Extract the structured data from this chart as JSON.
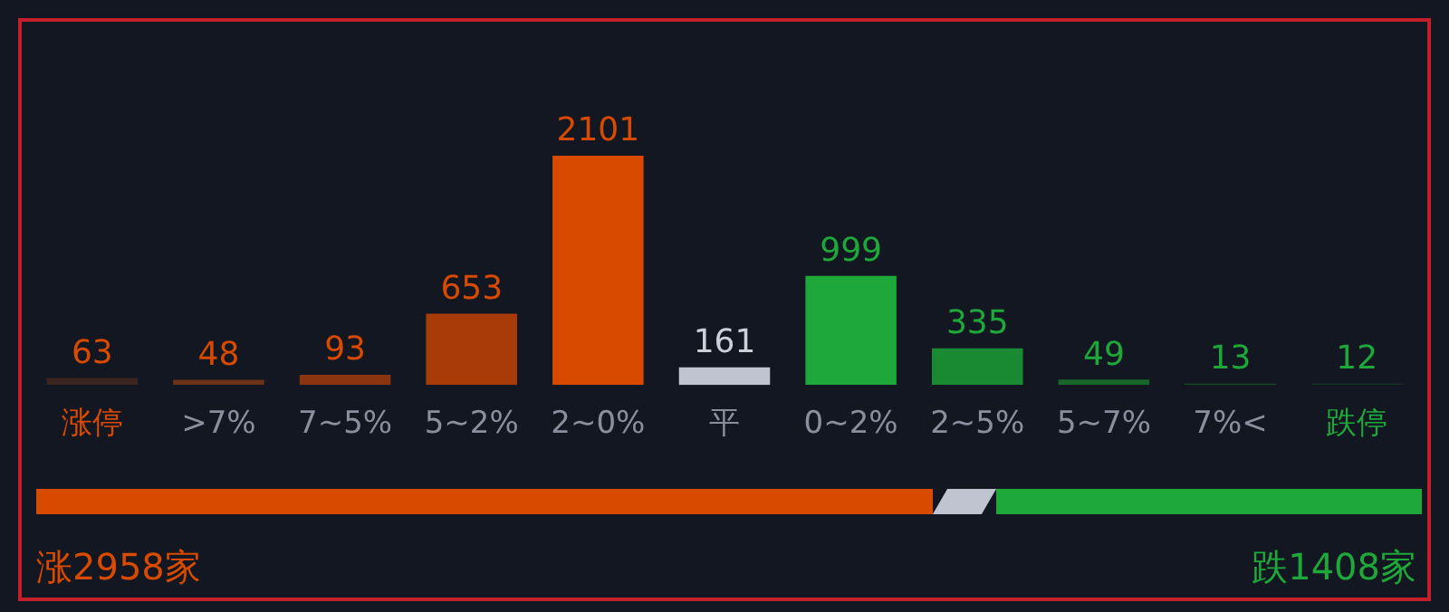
{
  "chart_data": {
    "type": "bar",
    "categories": [
      "涨停",
      ">7%",
      "7~5%",
      "5~2%",
      "2~0%",
      "平",
      "0~2%",
      "2~5%",
      "5~7%",
      "7%<",
      "跌停"
    ],
    "values": [
      63,
      48,
      93,
      653,
      2101,
      161,
      999,
      335,
      49,
      13,
      12
    ],
    "colors": [
      "#3a2520",
      "#6b3218",
      "#8a3510",
      "#a83c08",
      "#d84a00",
      "#c0c4d0",
      "#1ea83a",
      "#1a8a32",
      "#17672a",
      "#164a25",
      "#153825"
    ],
    "data_labels": true,
    "legend": false,
    "annotations": [
      "涨2958家",
      "跌1408家"
    ]
  }
}
